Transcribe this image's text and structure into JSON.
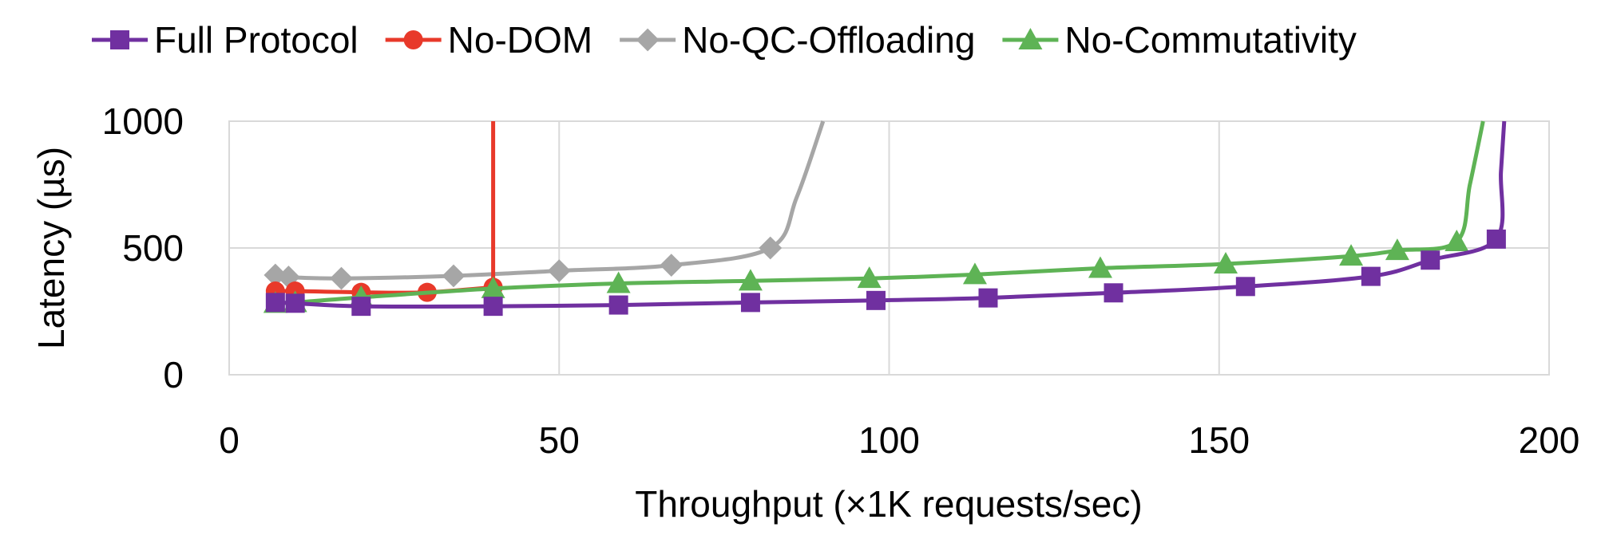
{
  "chart_data": {
    "type": "line",
    "xlabel": "Throughput  (×1K requests/sec)",
    "ylabel": "Latency (µs)",
    "xlim": [
      0,
      200
    ],
    "ylim": [
      0,
      1000
    ],
    "x_ticks": [
      0,
      50,
      100,
      150,
      200
    ],
    "y_ticks": [
      0,
      500,
      1000
    ],
    "grid": true,
    "legend_position": "top",
    "series": [
      {
        "name": "Full Protocol",
        "color": "#7030A0",
        "marker": "square",
        "points": [
          [
            7,
            285
          ],
          [
            10,
            282
          ],
          [
            20,
            270
          ],
          [
            40,
            270
          ],
          [
            59,
            275
          ],
          [
            79,
            285
          ],
          [
            98,
            293
          ],
          [
            115,
            303
          ],
          [
            134,
            323
          ],
          [
            154,
            348
          ],
          [
            173,
            388
          ],
          [
            182,
            452
          ],
          [
            192,
            535
          ]
        ],
        "tail": [
          [
            192.7,
            800
          ],
          [
            193.2,
            1000
          ]
        ]
      },
      {
        "name": "No-DOM",
        "color": "#E8392A",
        "marker": "circle",
        "points": [
          [
            7,
            330
          ],
          [
            10,
            330
          ],
          [
            20,
            325
          ],
          [
            30,
            325
          ],
          [
            40,
            345
          ]
        ],
        "tail": [
          [
            40,
            1000
          ]
        ]
      },
      {
        "name": "No-QC-Offloading",
        "color": "#A6A6A6",
        "marker": "diamond",
        "points": [
          [
            7,
            393
          ],
          [
            9,
            385
          ],
          [
            17,
            380
          ],
          [
            34,
            390
          ],
          [
            50,
            410
          ],
          [
            67,
            432
          ],
          [
            82,
            500
          ]
        ],
        "tail": [
          [
            86,
            700
          ],
          [
            90,
            1000
          ]
        ]
      },
      {
        "name": "No-Commutativity",
        "color": "#5EB355",
        "marker": "triangle",
        "points": [
          [
            7,
            282
          ],
          [
            10,
            285
          ],
          [
            20,
            305
          ],
          [
            40,
            340
          ],
          [
            59,
            360
          ],
          [
            79,
            370
          ],
          [
            97,
            380
          ],
          [
            113,
            395
          ],
          [
            132,
            420
          ],
          [
            151,
            437
          ],
          [
            170,
            468
          ],
          [
            177,
            490
          ],
          [
            186,
            525
          ]
        ],
        "tail": [
          [
            188,
            750
          ],
          [
            190,
            1000
          ]
        ]
      }
    ]
  }
}
